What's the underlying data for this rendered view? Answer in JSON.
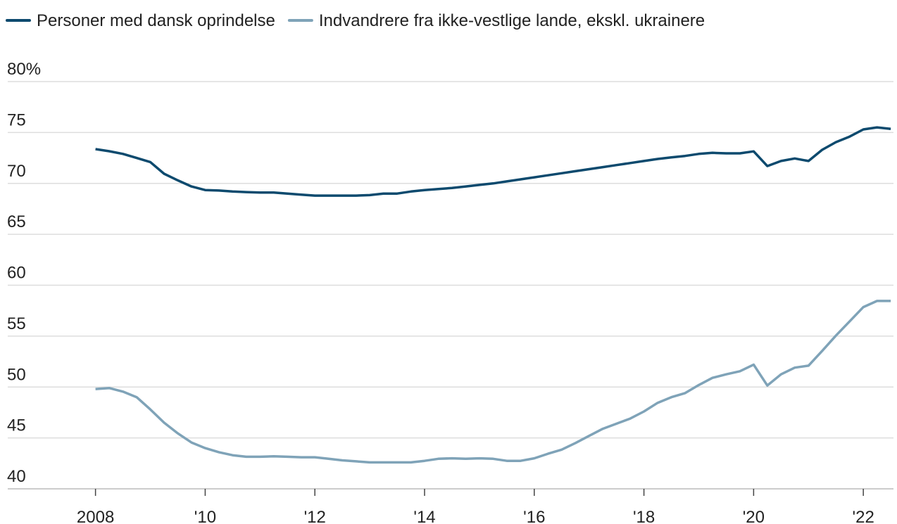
{
  "chart_data": {
    "type": "line",
    "x": [
      2008,
      2008.25,
      2008.5,
      2008.75,
      2009,
      2009.25,
      2009.5,
      2009.75,
      2010,
      2010.25,
      2010.5,
      2010.75,
      2011,
      2011.25,
      2011.5,
      2011.75,
      2012,
      2012.25,
      2012.5,
      2012.75,
      2013,
      2013.25,
      2013.5,
      2013.75,
      2014,
      2014.25,
      2014.5,
      2014.75,
      2015,
      2015.25,
      2015.5,
      2015.75,
      2016,
      2016.25,
      2016.5,
      2016.75,
      2017,
      2017.25,
      2017.5,
      2017.75,
      2018,
      2018.25,
      2018.5,
      2018.75,
      2019,
      2019.25,
      2019.5,
      2019.75,
      2020,
      2020.25,
      2020.5,
      2020.75,
      2021,
      2021.25,
      2021.5,
      2021.75,
      2022,
      2022.25,
      2022.5
    ],
    "series": [
      {
        "name": "Personer med dansk oprindelse",
        "color": "#0d4a6e",
        "values": [
          73.37,
          73.16,
          72.9,
          72.5,
          72.1,
          70.95,
          70.3,
          69.7,
          69.35,
          69.3,
          69.2,
          69.15,
          69.1,
          69.1,
          69.0,
          68.9,
          68.8,
          68.8,
          68.8,
          68.8,
          68.85,
          69.0,
          69.0,
          69.2,
          69.35,
          69.45,
          69.55,
          69.7,
          69.85,
          70.0,
          70.2,
          70.4,
          70.6,
          70.8,
          71.0,
          71.2,
          71.4,
          71.6,
          71.8,
          72.0,
          72.2,
          72.4,
          72.55,
          72.7,
          72.9,
          73.0,
          72.95,
          72.95,
          73.15,
          71.7,
          72.2,
          72.45,
          72.2,
          73.3,
          74.05,
          74.6,
          75.3,
          75.5,
          75.35
        ]
      },
      {
        "name": "Indvandrere fra ikke-vestlige lande, ekskl. ukrainere",
        "color": "#7fa3b8",
        "values": [
          49.8,
          49.9,
          49.55,
          49.0,
          47.8,
          46.5,
          45.45,
          44.55,
          44.0,
          43.6,
          43.3,
          43.15,
          43.15,
          43.2,
          43.15,
          43.1,
          43.1,
          42.95,
          42.8,
          42.7,
          42.6,
          42.6,
          42.6,
          42.6,
          42.75,
          42.95,
          43.0,
          42.95,
          43.0,
          42.95,
          42.75,
          42.75,
          43.0,
          43.45,
          43.85,
          44.5,
          45.2,
          45.9,
          46.4,
          46.9,
          47.6,
          48.45,
          49.0,
          49.4,
          50.2,
          50.9,
          51.25,
          51.55,
          52.2,
          50.15,
          51.25,
          51.9,
          52.1,
          53.55,
          55.05,
          56.45,
          57.85,
          58.45,
          58.45
        ]
      }
    ],
    "xlim": [
      2006.4,
      2022.55
    ],
    "xticks": [
      2008,
      {
        "value": 2010,
        "label": "'10"
      },
      {
        "value": 2012,
        "label": "'12"
      },
      {
        "value": 2014,
        "label": "'14"
      },
      {
        "value": 2016,
        "label": "'16"
      },
      {
        "value": 2018,
        "label": "'18"
      },
      {
        "value": 2020,
        "label": "'20"
      },
      {
        "value": 2022,
        "label": "'22"
      }
    ],
    "ylim": [
      40,
      80
    ],
    "yticks": [
      40,
      45,
      50,
      55,
      60,
      65,
      70,
      75,
      {
        "value": 80,
        "label": "80%"
      }
    ],
    "grid": true
  }
}
